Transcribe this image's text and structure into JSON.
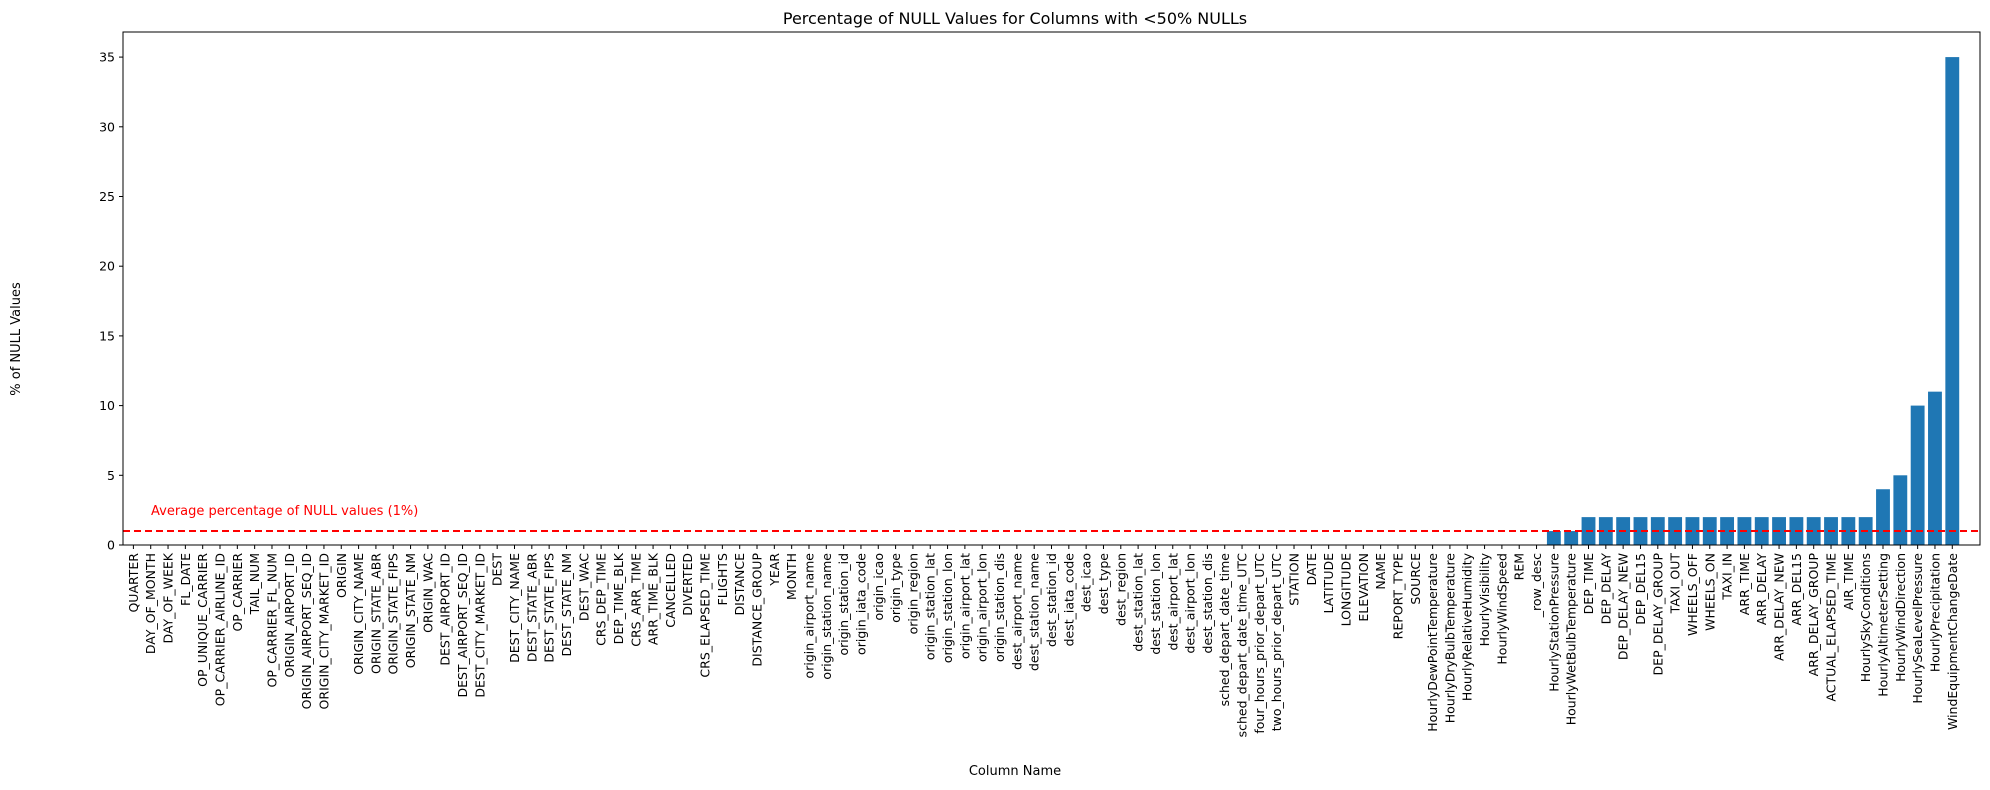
{
  "chart_data": {
    "type": "bar",
    "title": "Percentage of NULL Values for Columns with <50% NULLs",
    "xlabel": "Column Name",
    "ylabel": "% of NULL Values",
    "ylim": [
      0,
      36.8
    ],
    "yticks": [
      0,
      5,
      10,
      15,
      20,
      25,
      30,
      35
    ],
    "grid": false,
    "bar_color": "#1f77b4",
    "categories": [
      "QUARTER",
      "DAY_OF_MONTH",
      "DAY_OF_WEEK",
      "FL_DATE",
      "OP_UNIQUE_CARRIER",
      "OP_CARRIER_AIRLINE_ID",
      "OP_CARRIER",
      "TAIL_NUM",
      "OP_CARRIER_FL_NUM",
      "ORIGIN_AIRPORT_ID",
      "ORIGIN_AIRPORT_SEQ_ID",
      "ORIGIN_CITY_MARKET_ID",
      "ORIGIN",
      "ORIGIN_CITY_NAME",
      "ORIGIN_STATE_ABR",
      "ORIGIN_STATE_FIPS",
      "ORIGIN_STATE_NM",
      "ORIGIN_WAC",
      "DEST_AIRPORT_ID",
      "DEST_AIRPORT_SEQ_ID",
      "DEST_CITY_MARKET_ID",
      "DEST",
      "DEST_CITY_NAME",
      "DEST_STATE_ABR",
      "DEST_STATE_FIPS",
      "DEST_STATE_NM",
      "DEST_WAC",
      "CRS_DEP_TIME",
      "DEP_TIME_BLK",
      "CRS_ARR_TIME",
      "ARR_TIME_BLK",
      "CANCELLED",
      "DIVERTED",
      "CRS_ELAPSED_TIME",
      "FLIGHTS",
      "DISTANCE",
      "DISTANCE_GROUP",
      "YEAR",
      "MONTH",
      "origin_airport_name",
      "origin_station_name",
      "origin_station_id",
      "origin_iata_code",
      "origin_icao",
      "origin_type",
      "origin_region",
      "origin_station_lat",
      "origin_station_lon",
      "origin_airport_lat",
      "origin_airport_lon",
      "origin_station_dis",
      "dest_airport_name",
      "dest_station_name",
      "dest_station_id",
      "dest_iata_code",
      "dest_icao",
      "dest_type",
      "dest_region",
      "dest_station_lat",
      "dest_station_lon",
      "dest_airport_lat",
      "dest_airport_lon",
      "dest_station_dis",
      "sched_depart_date_time",
      "sched_depart_date_time_UTC",
      "four_hours_prior_depart_UTC",
      "two_hours_prior_depart_UTC",
      "STATION",
      "DATE",
      "LATITUDE",
      "LONGITUDE",
      "ELEVATION",
      "NAME",
      "REPORT_TYPE",
      "SOURCE",
      "HourlyDewPointTemperature",
      "HourlyDryBulbTemperature",
      "HourlyRelativeHumidity",
      "HourlyVisibility",
      "HourlyWindSpeed",
      "REM",
      "_row_desc",
      "HourlyStationPressure",
      "HourlyWetBulbTemperature",
      "DEP_TIME",
      "DEP_DELAY",
      "DEP_DELAY_NEW",
      "DEP_DEL15",
      "DEP_DELAY_GROUP",
      "TAXI_OUT",
      "WHEELS_OFF",
      "WHEELS_ON",
      "TAXI_IN",
      "ARR_TIME",
      "ARR_DELAY",
      "ARR_DELAY_NEW",
      "ARR_DEL15",
      "ARR_DELAY_GROUP",
      "ACTUAL_ELAPSED_TIME",
      "AIR_TIME",
      "HourlySkyConditions",
      "HourlyAltimeterSetting",
      "HourlyWindDirection",
      "HourlySeaLevelPressure",
      "HourlyPrecipitation",
      "WindEquipmentChangeDate"
    ],
    "values": [
      0,
      0,
      0,
      0,
      0,
      0,
      0,
      0,
      0,
      0,
      0,
      0,
      0,
      0,
      0,
      0,
      0,
      0,
      0,
      0,
      0,
      0,
      0,
      0,
      0,
      0,
      0,
      0,
      0,
      0,
      0,
      0,
      0,
      0,
      0,
      0,
      0,
      0,
      0,
      0,
      0,
      0,
      0,
      0,
      0,
      0,
      0,
      0,
      0,
      0,
      0,
      0,
      0,
      0,
      0,
      0,
      0,
      0,
      0,
      0,
      0,
      0,
      0,
      0,
      0,
      0,
      0,
      0,
      0,
      0,
      0,
      0,
      0,
      0,
      0,
      0,
      0,
      0,
      0,
      0,
      0,
      0,
      1,
      1,
      2,
      2,
      2,
      2,
      2,
      2,
      2,
      2,
      2,
      2,
      2,
      2,
      2,
      2,
      2,
      2,
      2,
      4,
      5,
      10,
      11,
      35
    ],
    "reference_line": {
      "value": 1,
      "color": "#ff0000",
      "style": "dashed",
      "label": "Average percentage of NULL values (1%)"
    }
  }
}
